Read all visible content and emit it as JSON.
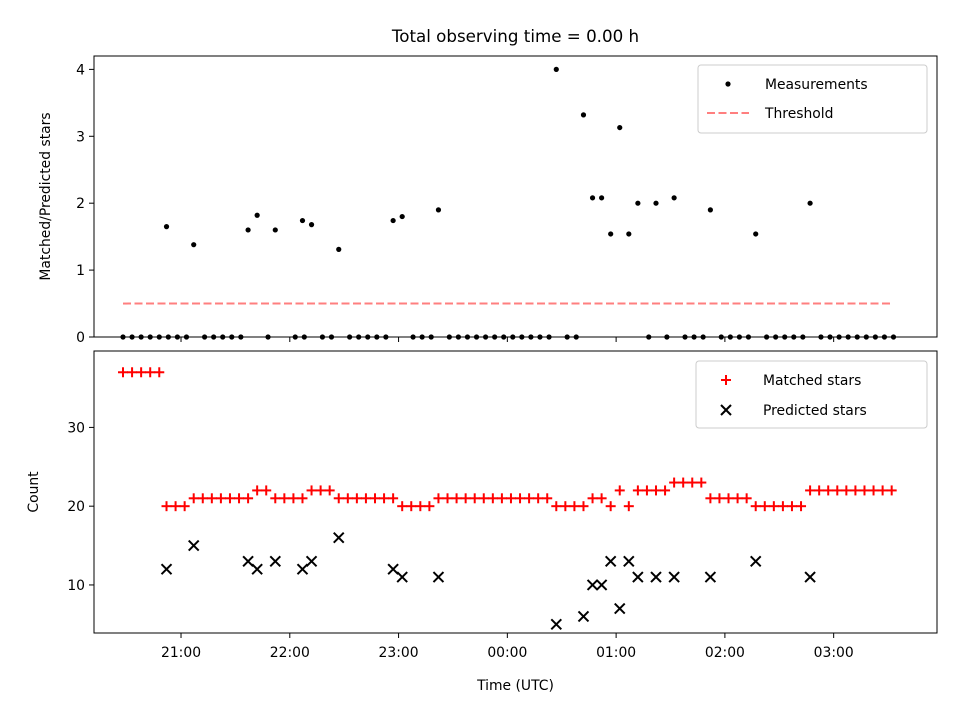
{
  "chart_data": [
    {
      "type": "scatter",
      "title": "Total observing time = 0.00 h",
      "xlabel": "",
      "ylabel": "Matched/Predicted stars",
      "ylim": [
        0,
        4.2
      ],
      "yticks": [
        0,
        1,
        2,
        3,
        4
      ],
      "xlim": [
        "20:12",
        "03:57"
      ],
      "xticks": [
        "21:00",
        "22:00",
        "23:00",
        "00:00",
        "01:00",
        "02:00",
        "03:00"
      ],
      "series": [
        {
          "name": "Measurements",
          "kind": "points",
          "color": "#000000",
          "points": [
            [
              "20:28",
              0
            ],
            [
              "20:33",
              0
            ],
            [
              "20:38",
              0
            ],
            [
              "20:43",
              0
            ],
            [
              "20:48",
              0
            ],
            [
              "20:53",
              0
            ],
            [
              "20:58",
              0
            ],
            [
              "21:03",
              0
            ],
            [
              "21:13",
              0
            ],
            [
              "21:18",
              0
            ],
            [
              "21:23",
              0
            ],
            [
              "21:28",
              0
            ],
            [
              "21:33",
              0
            ],
            [
              "21:48",
              0
            ],
            [
              "22:03",
              0
            ],
            [
              "22:08",
              0
            ],
            [
              "22:18",
              0
            ],
            [
              "22:23",
              0
            ],
            [
              "22:33",
              0
            ],
            [
              "22:38",
              0
            ],
            [
              "22:43",
              0
            ],
            [
              "22:48",
              0
            ],
            [
              "22:53",
              0
            ],
            [
              "23:08",
              0
            ],
            [
              "23:13",
              0
            ],
            [
              "23:18",
              0
            ],
            [
              "23:28",
              0
            ],
            [
              "23:33",
              0
            ],
            [
              "23:38",
              0
            ],
            [
              "23:43",
              0
            ],
            [
              "23:48",
              0
            ],
            [
              "23:53",
              0
            ],
            [
              "23:58",
              0
            ],
            [
              "00:03",
              0
            ],
            [
              "00:08",
              0
            ],
            [
              "00:13",
              0
            ],
            [
              "00:18",
              0
            ],
            [
              "00:23",
              0
            ],
            [
              "00:33",
              0
            ],
            [
              "00:38",
              0
            ],
            [
              "01:18",
              0
            ],
            [
              "01:28",
              0
            ],
            [
              "01:38",
              0
            ],
            [
              "01:43",
              0
            ],
            [
              "01:48",
              0
            ],
            [
              "01:58",
              0
            ],
            [
              "02:03",
              0
            ],
            [
              "02:08",
              0
            ],
            [
              "02:13",
              0
            ],
            [
              "02:23",
              0
            ],
            [
              "02:28",
              0
            ],
            [
              "02:33",
              0
            ],
            [
              "02:38",
              0
            ],
            [
              "02:43",
              0
            ],
            [
              "02:53",
              0
            ],
            [
              "02:58",
              0
            ],
            [
              "03:03",
              0
            ],
            [
              "03:08",
              0
            ],
            [
              "03:13",
              0
            ],
            [
              "03:18",
              0
            ],
            [
              "03:23",
              0
            ],
            [
              "03:28",
              0
            ],
            [
              "03:33",
              0
            ],
            [
              "20:52",
              1.65
            ],
            [
              "21:07",
              1.38
            ],
            [
              "21:37",
              1.6
            ],
            [
              "21:42",
              1.82
            ],
            [
              "21:52",
              1.6
            ],
            [
              "22:07",
              1.74
            ],
            [
              "22:12",
              1.68
            ],
            [
              "22:27",
              1.31
            ],
            [
              "22:57",
              1.74
            ],
            [
              "23:02",
              1.8
            ],
            [
              "23:22",
              1.9
            ],
            [
              "00:27",
              4.0
            ],
            [
              "00:42",
              3.32
            ],
            [
              "00:47",
              2.08
            ],
            [
              "00:52",
              2.08
            ],
            [
              "00:57",
              1.54
            ],
            [
              "01:02",
              3.13
            ],
            [
              "01:07",
              1.54
            ],
            [
              "01:12",
              2.0
            ],
            [
              "01:22",
              2.0
            ],
            [
              "01:32",
              2.08
            ],
            [
              "01:52",
              1.9
            ],
            [
              "02:17",
              1.54
            ],
            [
              "02:47",
              2.0
            ]
          ]
        },
        {
          "name": "Threshold",
          "kind": "dashed-line",
          "color": "#ff7f7f",
          "points": [
            [
              "20:28",
              0.5
            ],
            [
              "03:33",
              0.5
            ]
          ]
        }
      ],
      "legend": "upper right"
    },
    {
      "type": "scatter",
      "title": "",
      "xlabel": "Time (UTC)",
      "ylabel": "Count",
      "ylim": [
        3.9,
        39.7
      ],
      "yticks": [
        10,
        20,
        30
      ],
      "xlim": [
        "20:12",
        "03:57"
      ],
      "xticks": [
        "21:00",
        "22:00",
        "23:00",
        "00:00",
        "01:00",
        "02:00",
        "03:00"
      ],
      "series": [
        {
          "name": "Matched stars",
          "marker": "+",
          "color": "#ff0000",
          "points": [
            [
              "20:28",
              37
            ],
            [
              "20:33",
              37
            ],
            [
              "20:38",
              37
            ],
            [
              "20:43",
              37
            ],
            [
              "20:48",
              37
            ],
            [
              "20:52",
              20
            ],
            [
              "20:57",
              20
            ],
            [
              "21:02",
              20
            ],
            [
              "21:07",
              21
            ],
            [
              "21:12",
              21
            ],
            [
              "21:17",
              21
            ],
            [
              "21:22",
              21
            ],
            [
              "21:27",
              21
            ],
            [
              "21:32",
              21
            ],
            [
              "21:37",
              21
            ],
            [
              "21:42",
              22
            ],
            [
              "21:47",
              22
            ],
            [
              "21:52",
              21
            ],
            [
              "21:57",
              21
            ],
            [
              "22:02",
              21
            ],
            [
              "22:07",
              21
            ],
            [
              "22:12",
              22
            ],
            [
              "22:17",
              22
            ],
            [
              "22:22",
              22
            ],
            [
              "22:27",
              21
            ],
            [
              "22:32",
              21
            ],
            [
              "22:37",
              21
            ],
            [
              "22:42",
              21
            ],
            [
              "22:47",
              21
            ],
            [
              "22:52",
              21
            ],
            [
              "22:57",
              21
            ],
            [
              "23:02",
              20
            ],
            [
              "23:07",
              20
            ],
            [
              "23:12",
              20
            ],
            [
              "23:17",
              20
            ],
            [
              "23:22",
              21
            ],
            [
              "23:27",
              21
            ],
            [
              "23:32",
              21
            ],
            [
              "23:37",
              21
            ],
            [
              "23:42",
              21
            ],
            [
              "23:47",
              21
            ],
            [
              "23:52",
              21
            ],
            [
              "23:57",
              21
            ],
            [
              "00:02",
              21
            ],
            [
              "00:07",
              21
            ],
            [
              "00:12",
              21
            ],
            [
              "00:17",
              21
            ],
            [
              "00:22",
              21
            ],
            [
              "00:27",
              20
            ],
            [
              "00:32",
              20
            ],
            [
              "00:37",
              20
            ],
            [
              "00:42",
              20
            ],
            [
              "00:47",
              21
            ],
            [
              "00:52",
              21
            ],
            [
              "00:57",
              20
            ],
            [
              "01:02",
              22
            ],
            [
              "01:07",
              20
            ],
            [
              "01:12",
              22
            ],
            [
              "01:17",
              22
            ],
            [
              "01:22",
              22
            ],
            [
              "01:27",
              22
            ],
            [
              "01:32",
              23
            ],
            [
              "01:37",
              23
            ],
            [
              "01:42",
              23
            ],
            [
              "01:47",
              23
            ],
            [
              "01:52",
              21
            ],
            [
              "01:57",
              21
            ],
            [
              "02:02",
              21
            ],
            [
              "02:07",
              21
            ],
            [
              "02:12",
              21
            ],
            [
              "02:17",
              20
            ],
            [
              "02:22",
              20
            ],
            [
              "02:27",
              20
            ],
            [
              "02:32",
              20
            ],
            [
              "02:37",
              20
            ],
            [
              "02:42",
              20
            ],
            [
              "02:47",
              22
            ],
            [
              "02:52",
              22
            ],
            [
              "02:57",
              22
            ],
            [
              "03:02",
              22
            ],
            [
              "03:07",
              22
            ],
            [
              "03:12",
              22
            ],
            [
              "03:17",
              22
            ],
            [
              "03:22",
              22
            ],
            [
              "03:27",
              22
            ],
            [
              "03:32",
              22
            ]
          ]
        },
        {
          "name": "Predicted stars",
          "marker": "x",
          "color": "#000000",
          "points": [
            [
              "20:52",
              12
            ],
            [
              "21:07",
              15
            ],
            [
              "21:37",
              13
            ],
            [
              "21:42",
              12
            ],
            [
              "21:52",
              13
            ],
            [
              "22:07",
              12
            ],
            [
              "22:12",
              13
            ],
            [
              "22:27",
              16
            ],
            [
              "22:57",
              12
            ],
            [
              "23:02",
              11
            ],
            [
              "23:22",
              11
            ],
            [
              "00:27",
              5
            ],
            [
              "00:42",
              6
            ],
            [
              "00:47",
              10
            ],
            [
              "00:52",
              10
            ],
            [
              "00:57",
              13
            ],
            [
              "01:02",
              7
            ],
            [
              "01:07",
              13
            ],
            [
              "01:12",
              11
            ],
            [
              "01:22",
              11
            ],
            [
              "01:32",
              11
            ],
            [
              "01:52",
              11
            ],
            [
              "02:17",
              13
            ],
            [
              "02:47",
              11
            ]
          ]
        }
      ],
      "legend": "upper right"
    }
  ]
}
